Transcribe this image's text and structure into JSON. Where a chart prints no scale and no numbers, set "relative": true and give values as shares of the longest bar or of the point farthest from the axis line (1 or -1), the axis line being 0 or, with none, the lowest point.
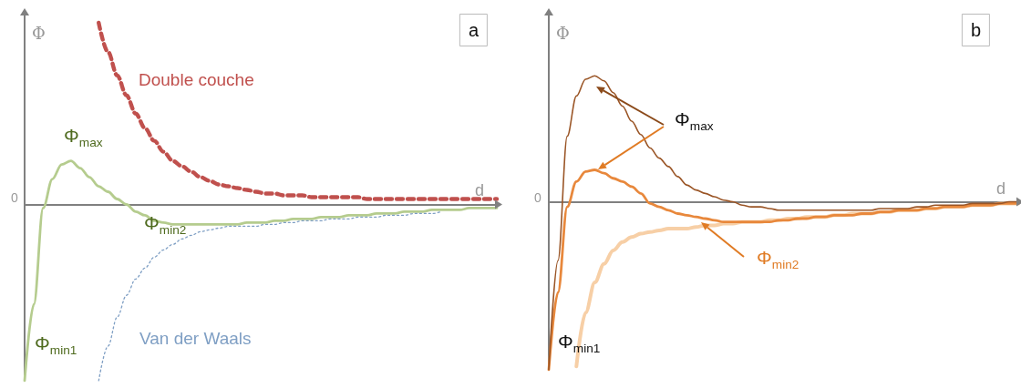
{
  "chart_data": [
    {
      "type": "line",
      "title": "a",
      "xlabel": "d",
      "ylabel": "Φ",
      "relative": true,
      "marker": "none",
      "categories": [
        null,
        null,
        null,
        null,
        null,
        null,
        null,
        null,
        null,
        null,
        null,
        null,
        null,
        null,
        null,
        null,
        null,
        null,
        null,
        null,
        null,
        null,
        null,
        null,
        null,
        null,
        null,
        null,
        null,
        null,
        null,
        null,
        null,
        null,
        null,
        null,
        null,
        null,
        null,
        null,
        null,
        null,
        null,
        null,
        null,
        null,
        null,
        null,
        null,
        null,
        null,
        null
      ],
      "series": [
        {
          "color": "#c0504d",
          "line_style": "dashed",
          "name": "Double couche",
          "values": [
            null,
            null,
            null,
            null,
            null,
            null,
            null,
            null,
            1,
            0.84,
            0.71,
            0.6,
            0.5,
            0.42,
            0.35,
            0.29,
            0.24,
            0.21,
            0.18,
            0.15,
            0.13,
            0.11,
            0.1,
            0.09,
            0.08,
            0.07,
            0.06,
            0.06,
            0.05,
            0.05,
            0.05,
            0.04,
            0.04,
            0.04,
            0.04,
            0.04,
            0.04,
            0.03,
            0.03,
            0.03,
            0.03,
            0.03,
            0.03,
            0.03,
            0.03,
            0.03,
            0.03,
            0.03,
            0.03,
            0.03,
            0.03,
            0.03
          ]
        },
        {
          "color": "#b5cc8e",
          "line_style": "solid",
          "values": [
            -0.97,
            -0.55,
            -0.02,
            0.14,
            0.22,
            0.24,
            0.2,
            0.15,
            0.1,
            0.07,
            0.03,
            0,
            -0.04,
            -0.06,
            -0.09,
            -0.1,
            -0.11,
            -0.11,
            -0.11,
            -0.11,
            -0.11,
            -0.11,
            -0.11,
            -0.11,
            -0.1,
            -0.1,
            -0.1,
            -0.09,
            -0.09,
            -0.08,
            -0.08,
            -0.08,
            -0.07,
            -0.07,
            -0.07,
            -0.06,
            -0.06,
            -0.06,
            -0.05,
            -0.05,
            -0.05,
            -0.04,
            -0.04,
            -0.04,
            -0.03,
            -0.03,
            -0.03,
            -0.03,
            -0.02,
            -0.02,
            -0.02,
            -0.02
          ]
        },
        {
          "color": "#7f9fc4",
          "line_style": "dotted",
          "name": "Van der Waals",
          "values": [
            null,
            null,
            null,
            null,
            null,
            null,
            null,
            null,
            -0.97,
            -0.78,
            -0.62,
            -0.5,
            -0.41,
            -0.35,
            -0.29,
            -0.25,
            -0.22,
            -0.19,
            -0.17,
            -0.15,
            -0.14,
            -0.13,
            -0.12,
            -0.12,
            -0.12,
            -0.12,
            -0.11,
            -0.11,
            -0.1,
            -0.1,
            -0.09,
            -0.09,
            -0.09,
            -0.08,
            -0.08,
            -0.08,
            -0.07,
            -0.07,
            -0.07,
            -0.06,
            -0.06,
            -0.06,
            -0.05,
            -0.05,
            -0.05,
            -0.04,
            null,
            null,
            null,
            null,
            null,
            null
          ]
        }
      ],
      "annotations": [
        "0",
        "Φ$_{max}$",
        "Φ$_{min2}$",
        "Φ$_{min1}$"
      ]
    },
    {
      "type": "line",
      "title": "b",
      "xlabel": "d",
      "ylabel": "Φ",
      "relative": true,
      "marker": "none",
      "categories": [
        null,
        null,
        null,
        null,
        null,
        null,
        null,
        null,
        null,
        null,
        null,
        null,
        null,
        null,
        null,
        null,
        null,
        null,
        null,
        null,
        null,
        null,
        null,
        null,
        null,
        null,
        null,
        null,
        null,
        null,
        null,
        null,
        null,
        null,
        null,
        null,
        null,
        null,
        null,
        null,
        null,
        null,
        null,
        null,
        null,
        null,
        null,
        null,
        null,
        null,
        null,
        null
      ],
      "series": [
        {
          "color": "#f7cfa6",
          "line_style": "solid",
          "values": [
            null,
            null,
            null,
            -0.98,
            -0.66,
            -0.48,
            -0.37,
            -0.29,
            -0.24,
            -0.21,
            -0.19,
            -0.18,
            -0.17,
            -0.16,
            -0.16,
            -0.16,
            -0.15,
            -0.14,
            -0.14,
            -0.13,
            -0.13,
            -0.12,
            -0.12,
            -0.12,
            -0.11,
            -0.11,
            -0.1,
            -0.1,
            -0.09,
            -0.09,
            -0.09,
            -0.08,
            -0.08,
            -0.07,
            -0.07,
            -0.07,
            -0.06,
            -0.06,
            -0.05,
            -0.05,
            -0.05,
            -0.04,
            -0.04,
            -0.03,
            -0.03,
            -0.03,
            -0.02,
            -0.02,
            -0.02,
            -0.01,
            -0.01,
            -0.01
          ]
        },
        {
          "color": "#e8883c",
          "line_style": "solid",
          "values": [
            -1,
            -0.54,
            -0.03,
            0.12,
            0.18,
            0.19,
            0.17,
            0.14,
            0.12,
            0.09,
            0.05,
            -0.01,
            -0.03,
            -0.05,
            -0.07,
            -0.08,
            -0.09,
            -0.1,
            -0.11,
            -0.12,
            -0.12,
            -0.12,
            -0.12,
            -0.12,
            -0.12,
            -0.11,
            -0.11,
            -0.1,
            -0.1,
            -0.09,
            -0.09,
            -0.08,
            -0.08,
            -0.08,
            -0.07,
            -0.07,
            -0.06,
            -0.06,
            -0.05,
            -0.05,
            -0.05,
            -0.04,
            -0.04,
            -0.03,
            -0.03,
            -0.03,
            -0.02,
            -0.02,
            -0.02,
            -0.01,
            -0.01,
            -0.01
          ]
        },
        {
          "color": "#9a5526",
          "line_style": "solid",
          "values": [
            -1,
            -0.35,
            0.39,
            0.63,
            0.73,
            0.75,
            0.72,
            0.65,
            0.57,
            0.48,
            0.4,
            0.32,
            0.26,
            0.21,
            0.15,
            0.1,
            0.07,
            0.05,
            0.03,
            0.01,
            0,
            -0.02,
            -0.03,
            -0.03,
            -0.04,
            -0.05,
            -0.05,
            -0.05,
            -0.05,
            -0.05,
            -0.05,
            -0.05,
            -0.05,
            -0.05,
            -0.05,
            -0.05,
            -0.04,
            -0.04,
            -0.04,
            -0.04,
            -0.03,
            -0.03,
            -0.02,
            -0.02,
            -0.02,
            -0.02,
            -0.01,
            -0.01,
            -0.01,
            -0.01,
            0,
            0
          ]
        }
      ],
      "annotations": [
        "0",
        "Φ$_{max}$",
        "Φ$_{min2}$",
        "Φ$_{min1}$"
      ]
    }
  ]
}
